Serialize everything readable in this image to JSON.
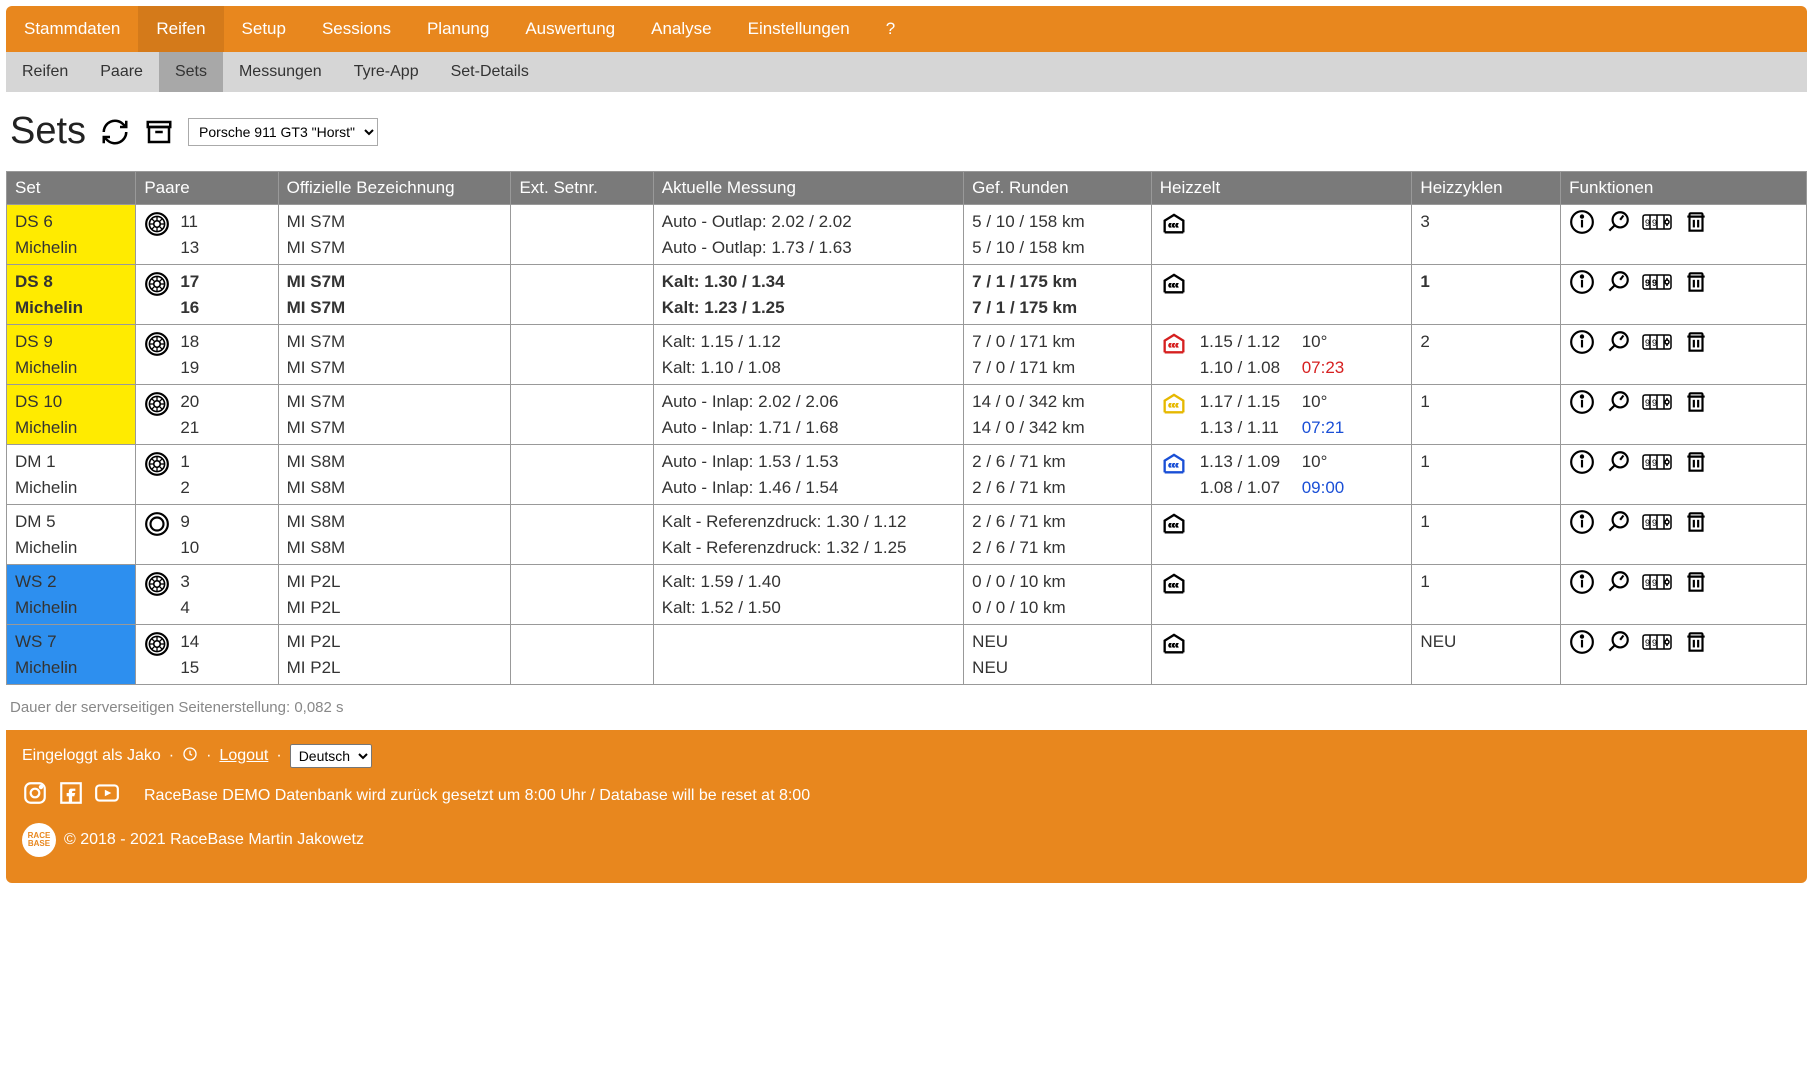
{
  "topnav": [
    "Stammdaten",
    "Reifen",
    "Setup",
    "Sessions",
    "Planung",
    "Auswertung",
    "Analyse",
    "Einstellungen",
    "?"
  ],
  "topnav_active": 1,
  "subnav": [
    "Reifen",
    "Paare",
    "Sets",
    "Messungen",
    "Tyre-App",
    "Set-Details"
  ],
  "subnav_active": 2,
  "page_title": "Sets",
  "car_select": "Porsche 911 GT3 \"Horst\"",
  "columns": [
    "Set",
    "Paare",
    "Offizielle Bezeichnung",
    "Ext. Setnr.",
    "Aktuelle Messung",
    "Gef. Runden",
    "Heizzelt",
    "Heizzyklen",
    "Funktionen"
  ],
  "col_widths": [
    "100px",
    "110px",
    "180px",
    "110px",
    "240px",
    "145px",
    "195px",
    "115px",
    "190px"
  ],
  "colors": {
    "yellow": "#ffeb00",
    "blue": "#2d8fef",
    "heat_red": "#d62020",
    "heat_yellow": "#e6b800",
    "heat_blue": "#1a4fd6",
    "heat_black": "#000"
  },
  "rows": [
    {
      "set": [
        "DS 6",
        "Michelin"
      ],
      "set_bg": "yellow",
      "bold": false,
      "tire_style": "filled",
      "paare": [
        "11",
        "13"
      ],
      "off": [
        "MI S7M",
        "MI S7M"
      ],
      "ext": "",
      "mess": [
        "Auto - Outlap: 2.02 / 2.02",
        "Auto - Outlap: 1.73 / 1.63"
      ],
      "runden": [
        "5 / 10 / 158 km",
        "5 / 10 / 158 km"
      ],
      "heat_color": "black",
      "heat_vals": [],
      "heat_extra": [],
      "zyklen": "3"
    },
    {
      "set": [
        "DS 8",
        "Michelin"
      ],
      "set_bg": "yellow",
      "bold": true,
      "tire_style": "filled",
      "paare": [
        "17",
        "16"
      ],
      "off": [
        "MI S7M",
        "MI S7M"
      ],
      "ext": "",
      "mess": [
        "Kalt: 1.30 / 1.34",
        "Kalt: 1.23 / 1.25"
      ],
      "runden": [
        "7 / 1 / 175 km",
        "7 / 1 / 175 km"
      ],
      "heat_color": "black",
      "heat_vals": [],
      "heat_extra": [],
      "zyklen": "1"
    },
    {
      "set": [
        "DS 9",
        "Michelin"
      ],
      "set_bg": "yellow",
      "bold": false,
      "tire_style": "filled",
      "paare": [
        "18",
        "19"
      ],
      "off": [
        "MI S7M",
        "MI S7M"
      ],
      "ext": "",
      "mess": [
        "Kalt: 1.15 / 1.12",
        "Kalt: 1.10 / 1.08"
      ],
      "runden": [
        "7 / 0 / 171 km",
        "7 / 0 / 171 km"
      ],
      "heat_color": "red",
      "heat_vals": [
        "1.15 / 1.12",
        "1.10 / 1.08"
      ],
      "heat_extra": [
        "10°",
        "07:23"
      ],
      "heat_extra_class": [
        "",
        "time-red"
      ],
      "zyklen": "2"
    },
    {
      "set": [
        "DS 10",
        "Michelin"
      ],
      "set_bg": "yellow",
      "bold": false,
      "tire_style": "filled",
      "paare": [
        "20",
        "21"
      ],
      "off": [
        "MI S7M",
        "MI S7M"
      ],
      "ext": "",
      "mess": [
        "Auto - Inlap: 2.02 / 2.06",
        "Auto - Inlap: 1.71 / 1.68"
      ],
      "runden": [
        "14 / 0 / 342 km",
        "14 / 0 / 342 km"
      ],
      "heat_color": "yellow",
      "heat_vals": [
        "1.17 / 1.15",
        "1.13 / 1.11"
      ],
      "heat_extra": [
        "10°",
        "07:21"
      ],
      "heat_extra_class": [
        "",
        "time-blue"
      ],
      "zyklen": "1"
    },
    {
      "set": [
        "DM 1",
        "Michelin"
      ],
      "set_bg": "",
      "bold": false,
      "tire_style": "filled",
      "paare": [
        "1",
        "2"
      ],
      "off": [
        "MI S8M",
        "MI S8M"
      ],
      "ext": "",
      "mess": [
        "Auto - Inlap: 1.53 / 1.53",
        "Auto - Inlap: 1.46 / 1.54"
      ],
      "runden": [
        "2 / 6 / 71 km",
        "2 / 6 / 71 km"
      ],
      "heat_color": "blue",
      "heat_vals": [
        "1.13 / 1.09",
        "1.08 / 1.07"
      ],
      "heat_extra": [
        "10°",
        "09:00"
      ],
      "heat_extra_class": [
        "",
        "time-blue"
      ],
      "zyklen": "1"
    },
    {
      "set": [
        "DM 5",
        "Michelin"
      ],
      "set_bg": "",
      "bold": false,
      "tire_style": "outline",
      "paare": [
        "9",
        "10"
      ],
      "off": [
        "MI S8M",
        "MI S8M"
      ],
      "ext": "",
      "mess": [
        "Kalt - Referenzdruck: 1.30 / 1.12",
        "Kalt - Referenzdruck: 1.32 / 1.25"
      ],
      "runden": [
        "2 / 6 / 71 km",
        "2 / 6 / 71 km"
      ],
      "heat_color": "black",
      "heat_vals": [],
      "heat_extra": [],
      "zyklen": "1"
    },
    {
      "set": [
        "WS 2",
        "Michelin"
      ],
      "set_bg": "blue",
      "bold": false,
      "tire_style": "filled",
      "paare": [
        "3",
        "4"
      ],
      "off": [
        "MI P2L",
        "MI P2L"
      ],
      "ext": "",
      "mess": [
        "Kalt: 1.59 / 1.40",
        "Kalt: 1.52 / 1.50"
      ],
      "runden": [
        "0 / 0 / 10 km",
        "0 / 0 / 10 km"
      ],
      "heat_color": "black",
      "heat_vals": [],
      "heat_extra": [],
      "zyklen": "1"
    },
    {
      "set": [
        "WS 7",
        "Michelin"
      ],
      "set_bg": "blue",
      "bold": false,
      "tire_style": "filled",
      "paare": [
        "14",
        "15"
      ],
      "off": [
        "MI P2L",
        "MI P2L"
      ],
      "ext": "",
      "mess": [
        "",
        ""
      ],
      "runden": [
        "NEU",
        "NEU"
      ],
      "heat_color": "black",
      "heat_vals": [],
      "heat_extra": [],
      "zyklen": "NEU"
    }
  ],
  "render_time": "Dauer der serverseitigen Seitenerstellung: 0,082 s",
  "footer": {
    "logged_in": "Eingeloggt als Jako",
    "logout": "Logout",
    "lang": "Deutsch",
    "demo_msg": "RaceBase DEMO Datenbank wird zurück gesetzt um 8:00 Uhr / Database will be reset at 8:00",
    "copyright": "© 2018 - 2021 RaceBase Martin Jakowetz"
  }
}
